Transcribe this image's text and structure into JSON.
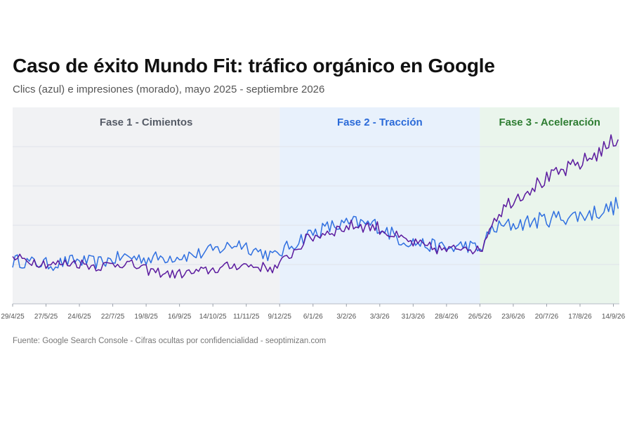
{
  "title": "Caso de éxito Mundo Fit: tráfico orgánico en Google",
  "subtitle": "Clics (azul) e impresiones (morado), mayo 2025 - septiembre 2026",
  "footer": "Fuente: Google Search Console - Cifras ocultas por confidencialidad - seoptimizan.com",
  "colors": {
    "clicks": "#2f6fe0",
    "impressions": "#5b1a9e",
    "phase1_bg": "#f1f2f4",
    "phase2_bg": "#e8f1fc",
    "phase3_bg": "#eaf5ec",
    "phase1_text": "#555b66",
    "phase2_text": "#2a6ad8",
    "phase3_text": "#2e7d32"
  },
  "chart_data": {
    "type": "line",
    "x_start": "2025-04-29",
    "x_end": "2026-09-20",
    "x_tick_labels": [
      "29/4/25",
      "27/5/25",
      "24/6/25",
      "22/7/25",
      "19/8/25",
      "16/9/25",
      "14/10/25",
      "11/11/25",
      "9/12/25",
      "6/1/26",
      "3/2/26",
      "3/3/26",
      "31/3/26",
      "28/4/26",
      "26/5/26",
      "23/6/26",
      "20/7/26",
      "17/8/26",
      "14/9/26"
    ],
    "x_ticks": [
      "2025-04-29",
      "2025-05-27",
      "2025-06-24",
      "2025-07-22",
      "2025-08-19",
      "2025-09-16",
      "2025-10-14",
      "2025-11-11",
      "2025-12-09",
      "2026-01-06",
      "2026-02-03",
      "2026-03-03",
      "2026-03-31",
      "2026-04-28",
      "2026-05-26",
      "2026-06-23",
      "2026-07-21",
      "2026-08-18",
      "2026-09-15"
    ],
    "y_axis_labels": false,
    "grid": true,
    "phases": [
      {
        "label": "Fase 1 - Cimientos",
        "start": "2025-04-20",
        "end": "2025-12-09"
      },
      {
        "label": "Fase 2 - Tracción",
        "start": "2025-12-09",
        "end": "2026-05-26"
      },
      {
        "label": "Fase 3 - Aceleración",
        "start": "2026-05-26",
        "end": "2026-09-20"
      }
    ],
    "series": [
      {
        "name": "Clics",
        "points": [
          [
            "2025-04-20",
            0.18
          ],
          [
            "2025-05-01",
            0.22
          ],
          [
            "2025-05-15",
            0.21
          ],
          [
            "2025-06-01",
            0.2
          ],
          [
            "2025-06-20",
            0.22
          ],
          [
            "2025-07-10",
            0.21
          ],
          [
            "2025-08-01",
            0.24
          ],
          [
            "2025-08-20",
            0.23
          ],
          [
            "2025-09-10",
            0.24
          ],
          [
            "2025-09-30",
            0.25
          ],
          [
            "2025-10-20",
            0.28
          ],
          [
            "2025-11-05",
            0.31
          ],
          [
            "2025-11-20",
            0.27
          ],
          [
            "2025-12-05",
            0.24
          ],
          [
            "2025-12-09",
            0.26
          ],
          [
            "2026-01-01",
            0.35
          ],
          [
            "2026-01-20",
            0.39
          ],
          [
            "2026-02-10",
            0.41
          ],
          [
            "2026-03-01",
            0.4
          ],
          [
            "2026-03-20",
            0.33
          ],
          [
            "2026-04-10",
            0.3
          ],
          [
            "2026-04-30",
            0.28
          ],
          [
            "2026-05-15",
            0.3
          ],
          [
            "2026-05-26",
            0.27
          ],
          [
            "2026-06-05",
            0.38
          ],
          [
            "2026-06-20",
            0.4
          ],
          [
            "2026-07-10",
            0.42
          ],
          [
            "2026-07-30",
            0.44
          ],
          [
            "2026-08-20",
            0.45
          ],
          [
            "2026-09-10",
            0.48
          ],
          [
            "2026-09-20",
            0.51
          ]
        ]
      },
      {
        "name": "Impresiones",
        "points": [
          [
            "2025-04-20",
            0.2
          ],
          [
            "2025-05-01",
            0.23
          ],
          [
            "2025-05-15",
            0.22
          ],
          [
            "2025-06-01",
            0.2
          ],
          [
            "2025-06-20",
            0.21
          ],
          [
            "2025-07-10",
            0.19
          ],
          [
            "2025-08-01",
            0.21
          ],
          [
            "2025-08-20",
            0.17
          ],
          [
            "2025-09-10",
            0.15
          ],
          [
            "2025-09-30",
            0.16
          ],
          [
            "2025-10-20",
            0.18
          ],
          [
            "2025-11-05",
            0.2
          ],
          [
            "2025-11-20",
            0.19
          ],
          [
            "2025-12-05",
            0.18
          ],
          [
            "2025-12-09",
            0.2
          ],
          [
            "2026-01-01",
            0.33
          ],
          [
            "2026-01-20",
            0.37
          ],
          [
            "2026-02-10",
            0.4
          ],
          [
            "2026-03-01",
            0.39
          ],
          [
            "2026-03-20",
            0.33
          ],
          [
            "2026-04-10",
            0.29
          ],
          [
            "2026-04-30",
            0.27
          ],
          [
            "2026-05-15",
            0.3
          ],
          [
            "2026-05-26",
            0.26
          ],
          [
            "2026-06-05",
            0.42
          ],
          [
            "2026-06-20",
            0.52
          ],
          [
            "2026-07-10",
            0.6
          ],
          [
            "2026-07-30",
            0.66
          ],
          [
            "2026-08-20",
            0.72
          ],
          [
            "2026-09-10",
            0.8
          ],
          [
            "2026-09-20",
            0.86
          ]
        ]
      }
    ]
  }
}
